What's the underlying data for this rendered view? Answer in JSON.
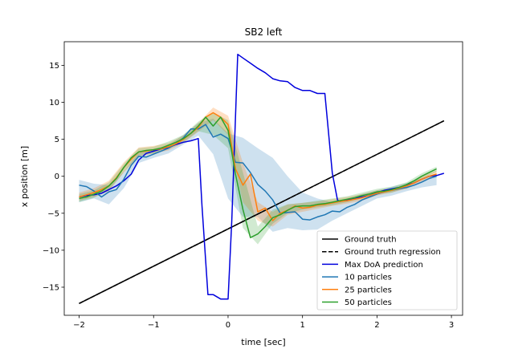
{
  "chart_data": {
    "type": "line",
    "title": "SB2 left",
    "xlabel": "time [sec]",
    "ylabel": "x position [m]",
    "xlim": [
      -2.2,
      3.15
    ],
    "ylim": [
      -18.8,
      18.2
    ],
    "xticks": [
      -2,
      -1,
      0,
      1,
      2,
      3
    ],
    "yticks": [
      -15,
      -10,
      -5,
      0,
      5,
      10,
      15
    ],
    "xtick_labels": [
      "−2",
      "−1",
      "0",
      "1",
      "2",
      "3"
    ],
    "ytick_labels": [
      "−15",
      "−10",
      "−5",
      "0",
      "5",
      "10",
      "15"
    ],
    "grid": false,
    "legend_position": "lower right",
    "series": [
      {
        "name": "Ground truth",
        "color": "#000000",
        "dash": "solid",
        "x": [
          -2.0,
          2.9
        ],
        "y": [
          -17.2,
          7.5
        ]
      },
      {
        "name": "Ground truth regression",
        "color": "#000000",
        "dash": "dashed",
        "x": [
          -2.0,
          2.9
        ],
        "y": [
          -17.2,
          7.5
        ]
      },
      {
        "name": "Max DoA prediction",
        "color": "#0000dd",
        "dash": "solid",
        "x": [
          -2.0,
          -1.9,
          -1.8,
          -1.7,
          -1.6,
          -1.5,
          -1.4,
          -1.3,
          -1.2,
          -1.1,
          -1.0,
          -0.9,
          -0.8,
          -0.7,
          -0.6,
          -0.5,
          -0.4,
          -0.35,
          -0.27,
          -0.2,
          -0.1,
          0.0,
          0.05,
          0.13,
          0.2,
          0.3,
          0.4,
          0.5,
          0.6,
          0.7,
          0.8,
          0.9,
          1.0,
          1.1,
          1.2,
          1.3,
          1.4,
          1.47,
          1.5,
          1.6,
          1.7,
          1.8,
          1.9,
          2.0,
          2.1,
          2.2,
          2.3,
          2.4,
          2.5,
          2.6,
          2.7,
          2.8,
          2.9
        ],
        "y": [
          -2.8,
          -2.6,
          -2.5,
          -2.3,
          -1.8,
          -1.3,
          -0.6,
          0.3,
          2.2,
          3.1,
          3.4,
          3.7,
          3.9,
          4.3,
          4.6,
          4.8,
          5.1,
          -4.0,
          -16.0,
          -16.0,
          -16.6,
          -16.6,
          -6.0,
          16.5,
          16.0,
          15.3,
          14.6,
          14.0,
          13.2,
          12.9,
          12.8,
          12.0,
          11.6,
          11.6,
          11.2,
          11.2,
          0.4,
          -3.2,
          -3.4,
          -3.2,
          -3.0,
          -2.8,
          -2.6,
          -2.2,
          -1.9,
          -1.7,
          -1.5,
          -1.2,
          -0.9,
          -0.4,
          0.0,
          0.1,
          0.4
        ]
      },
      {
        "name": "10 particles",
        "color": "#1f77b4",
        "dash": "solid",
        "x": [
          -2.0,
          -1.9,
          -1.8,
          -1.7,
          -1.6,
          -1.5,
          -1.4,
          -1.3,
          -1.2,
          -1.1,
          -1.0,
          -0.9,
          -0.8,
          -0.7,
          -0.6,
          -0.5,
          -0.4,
          -0.3,
          -0.2,
          -0.1,
          0.0,
          0.1,
          0.2,
          0.3,
          0.4,
          0.5,
          0.6,
          0.7,
          0.8,
          0.9,
          1.0,
          1.1,
          1.2,
          1.3,
          1.4,
          1.5,
          1.6,
          1.7,
          1.8,
          1.9,
          2.0,
          2.1,
          2.2,
          2.3,
          2.4,
          2.5,
          2.6,
          2.7,
          2.8
        ],
        "y": [
          -1.2,
          -1.4,
          -2.0,
          -2.8,
          -2.1,
          -1.8,
          -0.4,
          1.5,
          2.7,
          2.6,
          3.0,
          3.4,
          3.8,
          4.4,
          5.2,
          6.4,
          6.4,
          7.0,
          5.3,
          5.7,
          5.1,
          1.9,
          1.8,
          0.5,
          -1.1,
          -2.0,
          -3.2,
          -5.0,
          -4.9,
          -4.8,
          -5.8,
          -5.9,
          -5.5,
          -5.2,
          -4.7,
          -4.8,
          -4.2,
          -3.8,
          -3.2,
          -2.8,
          -2.4,
          -2.1,
          -1.9,
          -1.7,
          -1.5,
          -1.2,
          -0.8,
          -0.3,
          0.0
        ]
      },
      {
        "name": "25 particles",
        "color": "#ff7f0e",
        "dash": "solid",
        "x": [
          -2.0,
          -1.9,
          -1.8,
          -1.7,
          -1.6,
          -1.5,
          -1.4,
          -1.3,
          -1.2,
          -1.1,
          -1.0,
          -0.9,
          -0.8,
          -0.7,
          -0.6,
          -0.5,
          -0.4,
          -0.3,
          -0.2,
          -0.1,
          0.0,
          0.1,
          0.2,
          0.3,
          0.4,
          0.5,
          0.6,
          0.7,
          0.8,
          0.9,
          1.0,
          1.1,
          1.2,
          1.3,
          1.4,
          1.5,
          1.6,
          1.7,
          1.8,
          1.9,
          2.0,
          2.1,
          2.2,
          2.3,
          2.4,
          2.5,
          2.6,
          2.7,
          2.8
        ],
        "y": [
          -2.8,
          -2.5,
          -2.2,
          -1.8,
          -1.3,
          -0.2,
          1.2,
          2.3,
          3.3,
          3.4,
          3.6,
          3.7,
          4.0,
          4.4,
          5.0,
          5.8,
          6.6,
          8.0,
          8.6,
          8.0,
          7.0,
          1.0,
          -1.2,
          0.3,
          -4.8,
          -4.3,
          -6.0,
          -5.0,
          -4.6,
          -4.0,
          -4.3,
          -4.2,
          -3.9,
          -3.8,
          -3.6,
          -3.4,
          -3.3,
          -3.1,
          -2.9,
          -2.6,
          -2.3,
          -2.1,
          -1.9,
          -1.6,
          -1.3,
          -0.9,
          -0.4,
          0.0,
          0.3
        ]
      },
      {
        "name": "50 particles",
        "color": "#2ca02c",
        "dash": "solid",
        "x": [
          -2.0,
          -1.9,
          -1.8,
          -1.7,
          -1.6,
          -1.5,
          -1.4,
          -1.3,
          -1.2,
          -1.1,
          -1.0,
          -0.9,
          -0.8,
          -0.7,
          -0.6,
          -0.5,
          -0.4,
          -0.3,
          -0.2,
          -0.1,
          0.0,
          0.1,
          0.2,
          0.3,
          0.4,
          0.5,
          0.6,
          0.7,
          0.8,
          0.9,
          1.0,
          1.1,
          1.2,
          1.3,
          1.4,
          1.5,
          1.6,
          1.7,
          1.8,
          1.9,
          2.0,
          2.1,
          2.2,
          2.3,
          2.4,
          2.5,
          2.6,
          2.7,
          2.8
        ],
        "y": [
          -3.0,
          -2.8,
          -2.4,
          -2.0,
          -1.3,
          -0.3,
          1.2,
          2.5,
          3.3,
          3.5,
          3.6,
          3.8,
          4.2,
          4.6,
          5.1,
          5.8,
          6.8,
          8.0,
          6.8,
          8.0,
          6.2,
          0.3,
          -4.5,
          -8.3,
          -7.8,
          -6.8,
          -5.6,
          -5.2,
          -4.6,
          -4.1,
          -4.0,
          -4.0,
          -3.8,
          -3.7,
          -3.5,
          -3.3,
          -3.1,
          -2.9,
          -2.6,
          -2.4,
          -2.1,
          -2.0,
          -1.8,
          -1.5,
          -1.1,
          -0.6,
          0.0,
          0.5,
          1.0
        ]
      }
    ],
    "bands": [
      {
        "series": "10 particles",
        "color": "#1f77b4",
        "opacity": 0.22,
        "x": [
          -2.0,
          -1.8,
          -1.6,
          -1.4,
          -1.2,
          -1.0,
          -0.8,
          -0.6,
          -0.4,
          -0.2,
          0.0,
          0.2,
          0.4,
          0.6,
          0.8,
          1.0,
          1.2,
          1.4,
          1.6,
          1.8,
          2.0,
          2.2,
          2.4,
          2.6,
          2.8
        ],
        "upper": [
          -0.5,
          -1.0,
          -1.2,
          0.6,
          3.2,
          3.7,
          4.2,
          5.6,
          7.2,
          7.8,
          5.8,
          5.2,
          3.8,
          2.5,
          0.0,
          -2.2,
          -3.0,
          -3.5,
          -3.0,
          -2.4,
          -1.9,
          -1.4,
          -0.9,
          -0.3,
          0.4
        ],
        "lower": [
          -3.5,
          -3.0,
          -3.8,
          -1.6,
          1.8,
          2.5,
          3.1,
          4.3,
          5.5,
          3.0,
          -3.0,
          -5.5,
          -5.5,
          -7.5,
          -7.0,
          -7.3,
          -7.2,
          -6.0,
          -5.0,
          -4.0,
          -3.0,
          -2.6,
          -2.0,
          -1.5,
          -1.2
        ]
      },
      {
        "series": "25 particles",
        "color": "#ff7f0e",
        "opacity": 0.25,
        "x": [
          -2.0,
          -1.8,
          -1.6,
          -1.4,
          -1.2,
          -1.0,
          -0.8,
          -0.6,
          -0.4,
          -0.2,
          0.0,
          0.2,
          0.4,
          0.6,
          0.8,
          1.0,
          1.2,
          1.4,
          1.6,
          1.8,
          2.0,
          2.2,
          2.4,
          2.6,
          2.8
        ],
        "upper": [
          -2.2,
          -1.6,
          -0.6,
          1.9,
          3.9,
          4.1,
          4.5,
          5.5,
          7.2,
          9.3,
          8.2,
          1.8,
          -3.5,
          -4.8,
          -3.8,
          -3.6,
          -3.4,
          -3.1,
          -2.8,
          -2.4,
          -1.9,
          -1.6,
          -1.0,
          0.0,
          0.8
        ],
        "lower": [
          -3.3,
          -2.8,
          -2.0,
          0.5,
          2.7,
          3.1,
          3.5,
          4.5,
          6.0,
          7.6,
          5.6,
          -3.5,
          -6.0,
          -6.8,
          -5.2,
          -4.8,
          -4.4,
          -4.0,
          -3.7,
          -3.3,
          -2.6,
          -2.2,
          -1.7,
          -0.8,
          0.0
        ]
      },
      {
        "series": "50 particles",
        "color": "#2ca02c",
        "opacity": 0.22,
        "x": [
          -2.0,
          -1.8,
          -1.6,
          -1.4,
          -1.2,
          -1.0,
          -0.8,
          -0.6,
          -0.4,
          -0.2,
          0.0,
          0.2,
          0.4,
          0.6,
          0.8,
          1.0,
          1.2,
          1.4,
          1.6,
          1.8,
          2.0,
          2.2,
          2.4,
          2.6,
          2.8
        ],
        "upper": [
          -2.4,
          -1.9,
          -0.8,
          1.7,
          3.8,
          4.0,
          4.7,
          5.6,
          7.4,
          8.6,
          7.6,
          0.5,
          -6.8,
          -4.5,
          -3.8,
          -3.6,
          -3.3,
          -3.0,
          -2.7,
          -2.2,
          -1.7,
          -1.4,
          -0.8,
          0.4,
          1.3
        ],
        "lower": [
          -3.5,
          -2.9,
          -1.9,
          0.6,
          2.8,
          3.1,
          3.7,
          4.6,
          6.1,
          5.6,
          3.8,
          -7.0,
          -9.2,
          -6.4,
          -5.0,
          -4.5,
          -4.2,
          -3.9,
          -3.5,
          -3.0,
          -2.4,
          -2.2,
          -1.5,
          -0.4,
          0.6
        ]
      }
    ]
  }
}
